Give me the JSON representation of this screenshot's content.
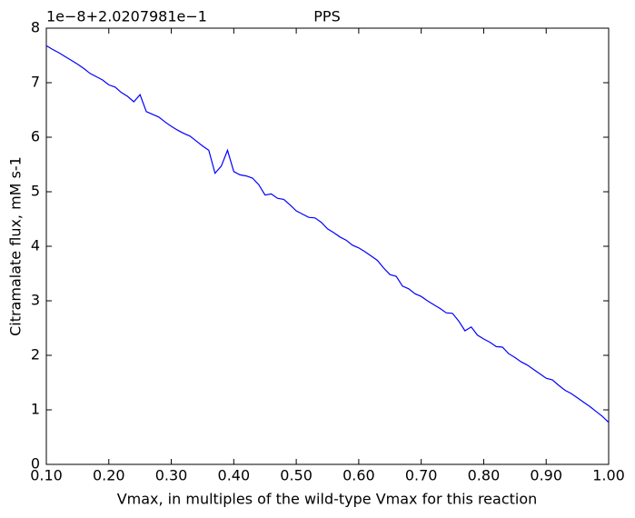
{
  "chart_data": {
    "type": "line",
    "title": "PPS",
    "offset_text": "1e−8+2.0207981e−1",
    "x_label": "Vmax, in multiples of the wild-type Vmax for this reaction",
    "y_label": "Citramalate flux, mM s-1",
    "x": [
      0.1,
      0.11,
      0.12,
      0.13,
      0.14,
      0.15,
      0.16,
      0.17,
      0.18,
      0.19,
      0.2,
      0.21,
      0.22,
      0.23,
      0.24,
      0.25,
      0.26,
      0.27,
      0.28,
      0.29,
      0.3,
      0.31,
      0.32,
      0.33,
      0.34,
      0.35,
      0.36,
      0.37,
      0.38,
      0.39,
      0.4,
      0.41,
      0.42,
      0.43,
      0.44,
      0.45,
      0.46,
      0.47,
      0.48,
      0.49,
      0.5,
      0.51,
      0.52,
      0.53,
      0.54,
      0.55,
      0.56,
      0.57,
      0.58,
      0.59,
      0.6,
      0.61,
      0.62,
      0.63,
      0.64,
      0.65,
      0.66,
      0.67,
      0.68,
      0.69,
      0.7,
      0.71,
      0.72,
      0.73,
      0.74,
      0.75,
      0.76,
      0.77,
      0.78,
      0.79,
      0.8,
      0.81,
      0.82,
      0.83,
      0.84,
      0.85,
      0.86,
      0.87,
      0.88,
      0.89,
      0.9,
      0.91,
      0.92,
      0.93,
      0.94,
      0.95,
      0.96,
      0.97,
      0.98,
      0.99,
      1.0
    ],
    "series": [
      {
        "name": "Citramalate flux",
        "color": "#0000ff",
        "values": [
          7.68,
          7.61,
          7.55,
          7.48,
          7.41,
          7.34,
          7.26,
          7.17,
          7.11,
          7.05,
          6.96,
          6.92,
          6.82,
          6.75,
          6.65,
          6.78,
          6.47,
          6.42,
          6.37,
          6.28,
          6.2,
          6.13,
          6.07,
          6.02,
          5.93,
          5.84,
          5.76,
          5.34,
          5.47,
          5.76,
          5.37,
          5.31,
          5.29,
          5.25,
          5.13,
          4.94,
          4.96,
          4.88,
          4.86,
          4.76,
          4.65,
          4.59,
          4.53,
          4.52,
          4.44,
          4.32,
          4.25,
          4.17,
          4.11,
          4.02,
          3.97,
          3.9,
          3.82,
          3.74,
          3.6,
          3.48,
          3.45,
          3.27,
          3.22,
          3.13,
          3.08,
          3.0,
          2.93,
          2.86,
          2.78,
          2.77,
          2.63,
          2.45,
          2.52,
          2.37,
          2.3,
          2.24,
          2.16,
          2.15,
          2.03,
          1.96,
          1.88,
          1.82,
          1.74,
          1.66,
          1.58,
          1.55,
          1.45,
          1.36,
          1.3,
          1.22,
          1.14,
          1.06,
          0.97,
          0.88,
          0.77
        ]
      }
    ],
    "xlim": [
      0.1,
      1.0
    ],
    "ylim": [
      0,
      8
    ],
    "xticks": [
      {
        "value": 0.1,
        "label": "0.10"
      },
      {
        "value": 0.2,
        "label": "0.20"
      },
      {
        "value": 0.3,
        "label": "0.30"
      },
      {
        "value": 0.4,
        "label": "0.40"
      },
      {
        "value": 0.5,
        "label": "0.50"
      },
      {
        "value": 0.6,
        "label": "0.60"
      },
      {
        "value": 0.7,
        "label": "0.70"
      },
      {
        "value": 0.8,
        "label": "0.80"
      },
      {
        "value": 0.9,
        "label": "0.90"
      },
      {
        "value": 1.0,
        "label": "1.00"
      }
    ],
    "yticks": [
      0,
      1,
      2,
      3,
      4,
      5,
      6,
      7,
      8
    ],
    "grid": false
  }
}
